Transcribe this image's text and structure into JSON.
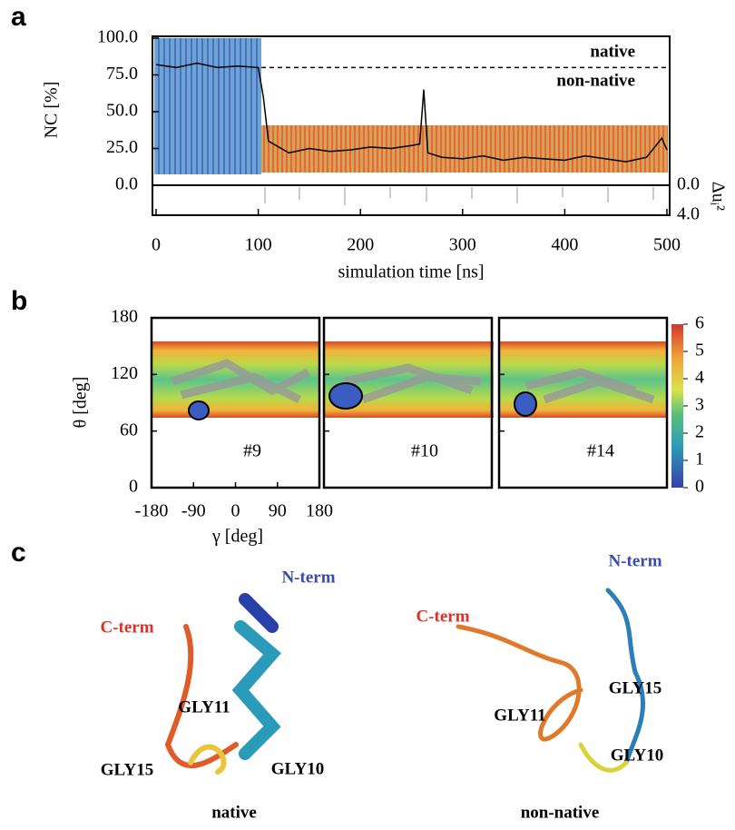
{
  "panel_labels": [
    "a",
    "b",
    "c"
  ],
  "chart_data": [
    {
      "type": "line",
      "x_label": "simulation time [ns]",
      "y_label": "NC [%]",
      "y2_label": "Δuᵢ²",
      "annotations": [
        "native",
        "non-native"
      ],
      "reference_line": 80,
      "xlim": [
        0,
        500
      ],
      "xticks": [
        0,
        100,
        200,
        300,
        400,
        500
      ],
      "ylim": [
        0,
        100
      ],
      "yticks": [
        {
          "value": 0,
          "label": "0.0"
        },
        {
          "value": 25,
          "label": "25.0"
        },
        {
          "value": 50,
          "label": "50.0"
        },
        {
          "value": 75,
          "label": "75.0"
        },
        {
          "value": 100,
          "label": "100.0"
        }
      ],
      "y2lim": [
        0,
        4
      ],
      "y2ticks": [
        {
          "value": 0,
          "label": "0.0"
        },
        {
          "value": 4,
          "label": "4.0"
        }
      ],
      "series": [
        {
          "color": "#000000",
          "x": [
            0,
            20,
            40,
            60,
            80,
            100,
            105,
            110,
            130,
            150,
            170,
            190,
            210,
            230,
            250,
            258,
            262,
            266,
            280,
            300,
            320,
            340,
            360,
            380,
            400,
            420,
            440,
            460,
            480,
            495,
            500
          ],
          "values": [
            82,
            80,
            83,
            80,
            81,
            80,
            60,
            30,
            22,
            25,
            23,
            24,
            26,
            25,
            27,
            28,
            65,
            22,
            19,
            18,
            20,
            17,
            19,
            18,
            17,
            20,
            18,
            16,
            19,
            32,
            24
          ]
        }
      ]
    },
    {
      "type": "heatmap",
      "x_label": "γ [deg]",
      "y_label": "θ [deg]",
      "panels": [
        "#9",
        "#10",
        "#14"
      ],
      "xlim": [
        -180,
        180
      ],
      "xticks": [
        -180,
        -90,
        0,
        90,
        180
      ],
      "ylim": [
        0,
        180
      ],
      "yticks": [
        0,
        60,
        120,
        180
      ],
      "colorbar_lim": [
        0,
        6
      ],
      "colorbar_ticks": [
        0,
        1,
        2,
        3,
        4,
        5,
        6
      ]
    }
  ],
  "structures": [
    {
      "caption": "native",
      "labels": [
        "C-term",
        "N-term",
        "GLY11",
        "GLY15",
        "GLY10"
      ]
    },
    {
      "caption": "non-native",
      "labels": [
        "C-term",
        "N-term",
        "GLY11",
        "GLY15",
        "GLY10"
      ]
    }
  ]
}
